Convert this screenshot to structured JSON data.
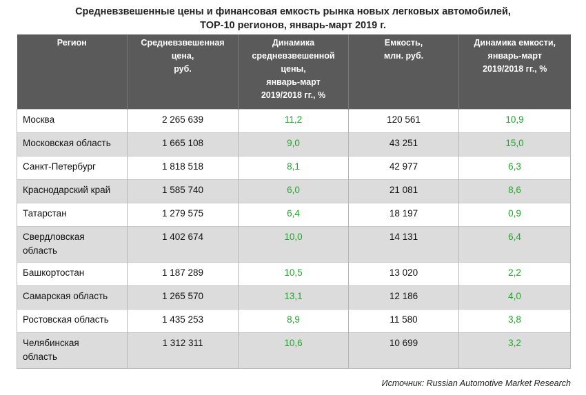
{
  "title": {
    "line1": "Средневзвешенные цены и финансовая емкость рынка новых легковых автомобилей,",
    "line2": "TOP-10 регионов, январь-март 2019 г."
  },
  "headers": {
    "region": "Регион",
    "price": "Средневзвешенная\nцена,\nруб.",
    "price_dynamics": "Динамика\nсредневзвешенной\nцены,\nянварь-март\n2019/2018 гг., %",
    "capacity": "Емкость,\nмлн. руб.",
    "capacity_dynamics": "Динамика емкости,\nянварь-март\n2019/2018 гг., %"
  },
  "rows": [
    {
      "region": "Москва",
      "price": "2 265 639",
      "price_dyn": "11,2",
      "capacity": "120 561",
      "capacity_dyn": "10,9"
    },
    {
      "region": "Московская область",
      "price": "1 665 108",
      "price_dyn": "9,0",
      "capacity": "43 251",
      "capacity_dyn": "15,0"
    },
    {
      "region": "Санкт-Петербург",
      "price": "1 818 518",
      "price_dyn": "8,1",
      "capacity": "42 977",
      "capacity_dyn": "6,3"
    },
    {
      "region": "Краснодарский край",
      "price": "1 585 740",
      "price_dyn": "6,0",
      "capacity": "21 081",
      "capacity_dyn": "8,6"
    },
    {
      "region": "Татарстан",
      "price": "1 279 575",
      "price_dyn": "6,4",
      "capacity": "18 197",
      "capacity_dyn": "0,9"
    },
    {
      "region": "Свердловская\nобласть",
      "price": "1 402 674",
      "price_dyn": "10,0",
      "capacity": "14 131",
      "capacity_dyn": "6,4"
    },
    {
      "region": "Башкортостан",
      "price": "1 187 289",
      "price_dyn": "10,5",
      "capacity": "13 020",
      "capacity_dyn": "2,2"
    },
    {
      "region": "Самарская область",
      "price": "1 265 570",
      "price_dyn": "13,1",
      "capacity": "12 186",
      "capacity_dyn": "4,0"
    },
    {
      "region": "Ростовская область",
      "price": "1 435 253",
      "price_dyn": "8,9",
      "capacity": "11 580",
      "capacity_dyn": "3,8"
    },
    {
      "region": "Челябинская\nобласть",
      "price": "1 312 311",
      "price_dyn": "10,6",
      "capacity": "10 699",
      "capacity_dyn": "3,2"
    }
  ],
  "source": "Источник: Russian Automotive Market Research",
  "colors": {
    "header_bg": "#5a5a5a",
    "alt_row_bg": "#dcdcdc",
    "positive_green": "#21a52a"
  }
}
